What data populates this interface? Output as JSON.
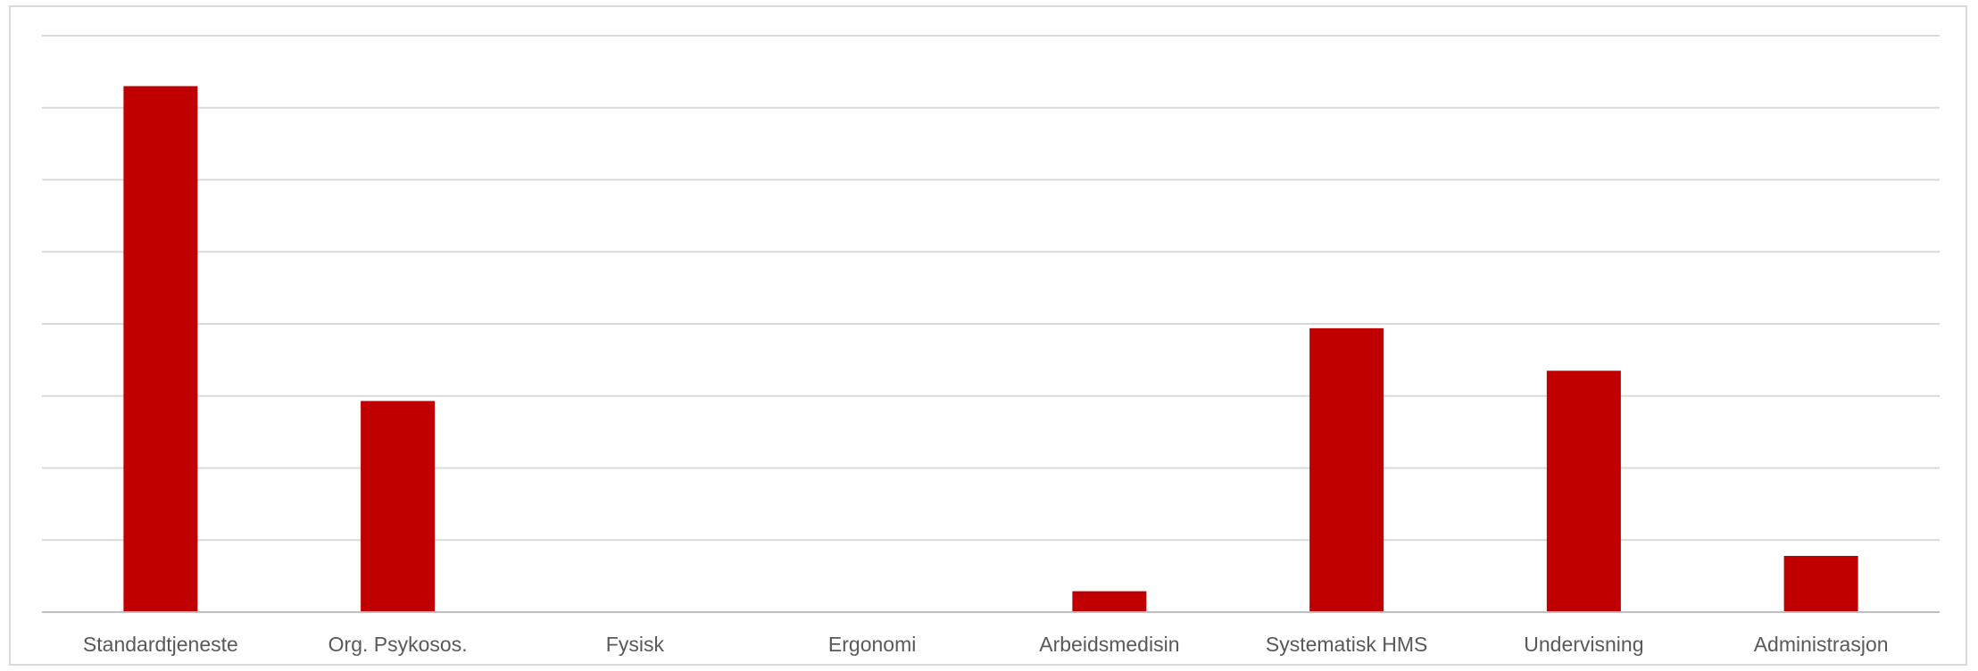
{
  "chart_data": {
    "type": "bar",
    "categories": [
      "Standardtjeneste",
      "Org. Psykosos.",
      "Fysisk",
      "Ergonomi",
      "Arbeidsmedisin",
      "Systematisk HMS",
      "Undervisning",
      "Administrasjon"
    ],
    "values": [
      7.3,
      2.93,
      0,
      0,
      0.29,
      3.94,
      3.35,
      0.78
    ],
    "ylim": [
      0,
      8
    ],
    "grid": true,
    "legend": "none",
    "colors": {
      "bar": "#c00000",
      "grid": "#d9d9d9",
      "axis": "#bfbfbf",
      "label": "#595959"
    }
  }
}
